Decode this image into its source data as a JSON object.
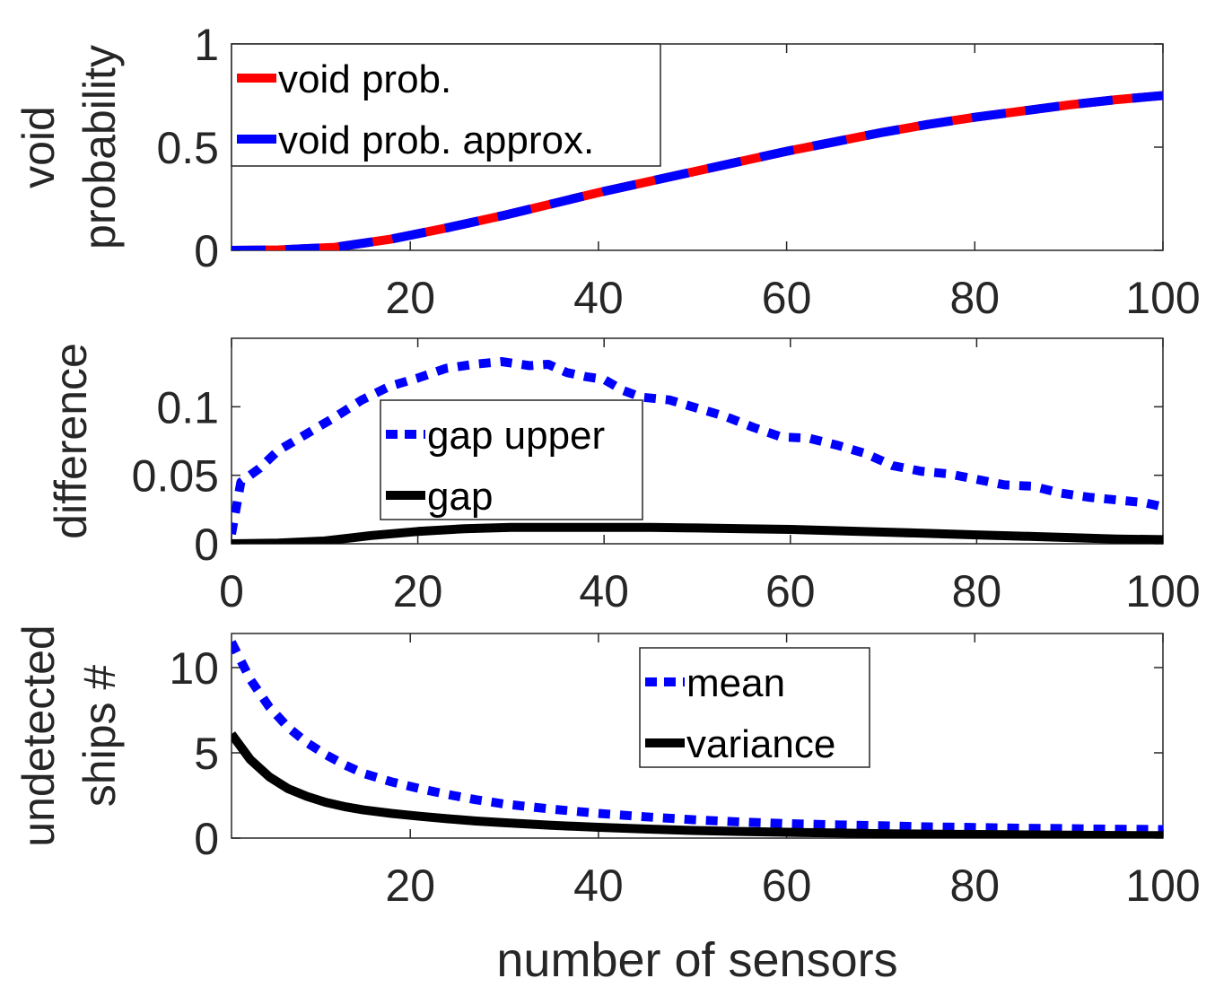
{
  "figure": {
    "xlabel": "number of sensors"
  },
  "chart_data": [
    {
      "type": "line",
      "title": "",
      "ylabel": [
        "void",
        "probability"
      ],
      "xlim": [
        1,
        100
      ],
      "ylim": [
        0,
        1
      ],
      "xticks": [
        20,
        40,
        60,
        80,
        100
      ],
      "yticks": [
        0,
        0.5,
        1
      ],
      "xtick_labels": [
        "20",
        "40",
        "60",
        "80",
        "100"
      ],
      "ytick_labels": [
        "0",
        "0.5",
        "1"
      ],
      "legend_position": "top-left",
      "series": [
        {
          "name": "void prob.",
          "color": "#ff0000",
          "style": "solid",
          "x": [
            1,
            6,
            12,
            18,
            24,
            30,
            35,
            40,
            45,
            50,
            55,
            60,
            65,
            70,
            75,
            80,
            85,
            90,
            95,
            100
          ],
          "y": [
            0.0,
            0.002,
            0.015,
            0.055,
            0.11,
            0.17,
            0.225,
            0.28,
            0.33,
            0.38,
            0.43,
            0.48,
            0.525,
            0.57,
            0.61,
            0.645,
            0.675,
            0.705,
            0.73,
            0.75
          ]
        },
        {
          "name": "void prob. approx.",
          "color": "#0000ff",
          "style": "dashed",
          "x": [
            1,
            6,
            12,
            18,
            24,
            30,
            35,
            40,
            45,
            50,
            55,
            60,
            65,
            70,
            75,
            80,
            85,
            90,
            95,
            100
          ],
          "y": [
            0.0,
            0.002,
            0.015,
            0.055,
            0.11,
            0.17,
            0.225,
            0.28,
            0.33,
            0.38,
            0.43,
            0.48,
            0.525,
            0.57,
            0.61,
            0.645,
            0.675,
            0.705,
            0.73,
            0.75
          ]
        }
      ]
    },
    {
      "type": "line",
      "title": "",
      "ylabel": [
        "difference"
      ],
      "xlim": [
        0,
        100
      ],
      "ylim": [
        0,
        0.15
      ],
      "xticks": [
        0,
        20,
        40,
        60,
        80,
        100
      ],
      "yticks": [
        0,
        0.05,
        0.1
      ],
      "xtick_labels": [
        "0",
        "20",
        "40",
        "60",
        "80",
        "100"
      ],
      "ytick_labels": [
        "0",
        "0.05",
        "0.1"
      ],
      "legend_position": "center-left",
      "series": [
        {
          "name": "gap upper",
          "color": "#0000ff",
          "style": "dotted",
          "x": [
            0,
            1,
            3,
            5,
            8,
            11,
            14,
            17,
            20,
            23,
            26,
            29,
            32,
            34,
            36,
            38,
            40,
            42,
            44,
            47,
            50,
            53,
            56,
            59,
            62,
            65,
            68,
            71,
            74,
            77,
            80,
            83,
            86,
            89,
            92,
            95,
            98,
            100
          ],
          "y": [
            0.007,
            0.045,
            0.055,
            0.068,
            0.08,
            0.092,
            0.105,
            0.115,
            0.121,
            0.128,
            0.131,
            0.133,
            0.13,
            0.131,
            0.125,
            0.122,
            0.12,
            0.112,
            0.107,
            0.105,
            0.099,
            0.093,
            0.085,
            0.078,
            0.077,
            0.072,
            0.066,
            0.057,
            0.053,
            0.051,
            0.047,
            0.043,
            0.042,
            0.037,
            0.034,
            0.032,
            0.03,
            0.027
          ]
        },
        {
          "name": "gap",
          "color": "#000000",
          "style": "solid",
          "x": [
            0,
            5,
            10,
            15,
            20,
            25,
            30,
            35,
            40,
            45,
            50,
            55,
            60,
            65,
            70,
            75,
            80,
            85,
            90,
            95,
            100
          ],
          "y": [
            0.0,
            0.0005,
            0.002,
            0.006,
            0.009,
            0.011,
            0.012,
            0.012,
            0.012,
            0.012,
            0.0115,
            0.011,
            0.0105,
            0.0095,
            0.0085,
            0.0075,
            0.0065,
            0.0055,
            0.0045,
            0.0035,
            0.003
          ]
        }
      ]
    },
    {
      "type": "line",
      "title": "",
      "ylabel": [
        "undetected",
        "ships #"
      ],
      "xlim": [
        1,
        100
      ],
      "ylim": [
        0,
        12
      ],
      "xticks": [
        20,
        40,
        60,
        80,
        100
      ],
      "yticks": [
        0,
        5,
        10
      ],
      "xtick_labels": [
        "20",
        "40",
        "60",
        "80",
        "100"
      ],
      "ytick_labels": [
        "0",
        "5",
        "10"
      ],
      "legend_position": "top-center",
      "series": [
        {
          "name": "mean",
          "color": "#0000ff",
          "style": "dotted",
          "x": [
            1,
            3,
            5,
            7,
            9,
            11,
            13,
            15,
            18,
            21,
            24,
            27,
            30,
            35,
            40,
            45,
            50,
            55,
            60,
            65,
            70,
            75,
            80,
            85,
            90,
            95,
            100
          ],
          "y": [
            11.5,
            9.3,
            7.7,
            6.5,
            5.6,
            4.9,
            4.3,
            3.8,
            3.3,
            2.9,
            2.55,
            2.25,
            2.0,
            1.7,
            1.45,
            1.25,
            1.08,
            0.95,
            0.85,
            0.78,
            0.72,
            0.66,
            0.62,
            0.58,
            0.55,
            0.52,
            0.5
          ]
        },
        {
          "name": "variance",
          "color": "#000000",
          "style": "solid",
          "x": [
            1,
            3,
            5,
            7,
            9,
            11,
            13,
            15,
            18,
            21,
            24,
            27,
            30,
            35,
            40,
            45,
            50,
            55,
            60,
            65,
            70,
            75,
            80,
            85,
            90,
            95,
            100
          ],
          "y": [
            6.1,
            4.6,
            3.6,
            2.9,
            2.45,
            2.1,
            1.85,
            1.65,
            1.45,
            1.28,
            1.13,
            1.0,
            0.9,
            0.75,
            0.63,
            0.53,
            0.45,
            0.39,
            0.34,
            0.3,
            0.26,
            0.23,
            0.21,
            0.19,
            0.17,
            0.15,
            0.14
          ]
        }
      ]
    }
  ]
}
